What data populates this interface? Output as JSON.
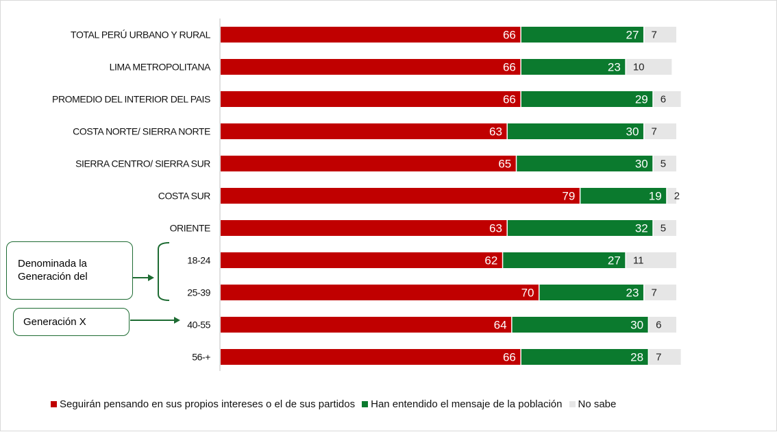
{
  "chart_data": {
    "type": "bar",
    "orientation": "horizontal",
    "stacked": true,
    "categories": [
      "TOTAL PERÚ URBANO Y RURAL",
      "LIMA METROPOLITANA",
      "PROMEDIO DEL INTERIOR DEL PAIS",
      "COSTA NORTE/ SIERRA NORTE",
      "SIERRA CENTRO/ SIERRA SUR",
      "COSTA SUR",
      "ORIENTE",
      "18-24",
      "25-39",
      "40-55",
      "56-+"
    ],
    "series": [
      {
        "name": "Seguirán pensando en sus propios intereses o el de sus partidos",
        "color": "#c00000",
        "values": [
          66,
          66,
          66,
          63,
          65,
          79,
          63,
          62,
          70,
          64,
          66
        ]
      },
      {
        "name": "Han entendido el mensaje de la población",
        "color": "#0b7a2e",
        "values": [
          27,
          23,
          29,
          30,
          30,
          19,
          32,
          27,
          23,
          30,
          28
        ]
      },
      {
        "name": "No sabe",
        "color": "#e6e6e6",
        "values": [
          7,
          10,
          6,
          7,
          5,
          2,
          5,
          11,
          7,
          6,
          7
        ]
      }
    ],
    "xlim": [
      0,
      100
    ],
    "grid": false,
    "legend_position": "bottom"
  },
  "callouts": {
    "millennial_text": "Denominada la Generación del",
    "genx_text": "Generación X"
  },
  "colors": {
    "red": "#c00000",
    "green": "#0b7a2e",
    "gray": "#e6e6e6",
    "callout_border": "#1d6b32"
  }
}
